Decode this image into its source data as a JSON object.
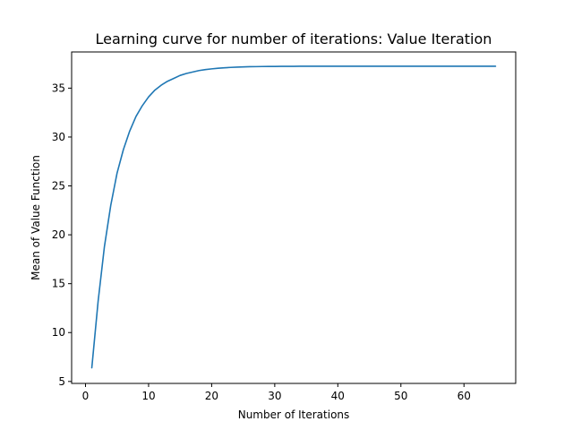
{
  "chart_data": {
    "type": "line",
    "title": "Learning curve for number of iterations: Value Iteration",
    "xlabel": "Number of Iterations",
    "ylabel": "Mean of Value Function",
    "xlim": [
      -2.2,
      68.2
    ],
    "ylim": [
      4.8,
      38.7
    ],
    "xticks": [
      0,
      10,
      20,
      30,
      40,
      50,
      60
    ],
    "yticks": [
      5,
      10,
      15,
      20,
      25,
      30,
      35
    ],
    "grid": false,
    "legend": "none",
    "series": [
      {
        "color": "#1f77b4",
        "x": [
          1,
          2,
          3,
          4,
          5,
          6,
          7,
          8,
          9,
          10,
          11,
          12,
          13,
          14,
          15,
          16,
          17,
          18,
          19,
          20,
          21,
          22,
          23,
          24,
          25,
          26,
          27,
          28,
          29,
          30,
          31,
          32,
          33,
          34,
          35,
          36,
          37,
          38,
          39,
          40,
          41,
          42,
          43,
          44,
          45,
          46,
          47,
          48,
          49,
          50,
          51,
          52,
          53,
          54,
          55,
          56,
          57,
          58,
          59,
          60,
          61,
          62,
          63,
          64,
          65
        ],
        "y": [
          6.4,
          13.2,
          18.8,
          23.0,
          26.3,
          28.7,
          30.6,
          32.1,
          33.2,
          34.1,
          34.8,
          35.3,
          35.7,
          36.0,
          36.3,
          36.5,
          36.65,
          36.8,
          36.9,
          36.97,
          37.03,
          37.08,
          37.12,
          37.15,
          37.17,
          37.19,
          37.2,
          37.21,
          37.22,
          37.22,
          37.23,
          37.23,
          37.23,
          37.24,
          37.24,
          37.24,
          37.24,
          37.24,
          37.24,
          37.24,
          37.24,
          37.24,
          37.24,
          37.24,
          37.24,
          37.24,
          37.24,
          37.24,
          37.24,
          37.24,
          37.24,
          37.24,
          37.24,
          37.24,
          37.24,
          37.24,
          37.24,
          37.24,
          37.24,
          37.24,
          37.24,
          37.24,
          37.24,
          37.24,
          37.24
        ]
      }
    ]
  }
}
